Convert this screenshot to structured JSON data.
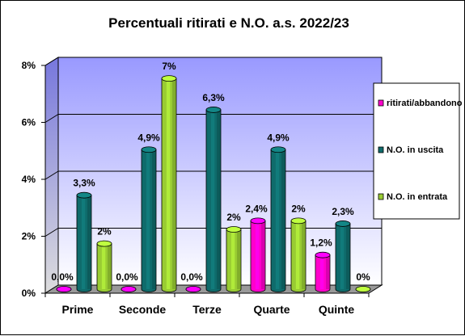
{
  "chart_data": {
    "type": "bar",
    "title": "Percentuali  ritirati e N.O. a.s. 2022/23",
    "xlabel": "",
    "ylabel": "",
    "categories": [
      "Prime",
      "Seconde",
      "Terze",
      "Quarte",
      "Quinte"
    ],
    "series": [
      {
        "name": "ritirati/abbandono",
        "values": [
          0.0,
          0.0,
          0.0,
          2.4,
          1.2
        ],
        "labels": [
          "0,0%",
          "0,0%",
          "0,0%",
          "2,4%",
          "1,2%"
        ],
        "color": "#ff00cc"
      },
      {
        "name": "N.O. in uscita",
        "values": [
          3.3,
          4.9,
          6.3,
          4.9,
          2.3
        ],
        "labels": [
          "3,3%",
          "4,9%",
          "6,3%",
          "4,9%",
          "2,3%"
        ],
        "color": "#0f6b6b"
      },
      {
        "name": "N.O. in entrata",
        "values": [
          1.6,
          7.4,
          2.1,
          2.4,
          0.0
        ],
        "labels": [
          "2%",
          "7%",
          "2%",
          "2%",
          "0%"
        ],
        "color": "#99cc33"
      }
    ],
    "ylim": [
      0,
      8
    ],
    "yticks": [
      0,
      2,
      4,
      6,
      8
    ],
    "ytick_labels": [
      "0%",
      "2%",
      "4%",
      "6%",
      "8%"
    ],
    "grid": true,
    "legend_position": "right",
    "colors": {
      "plot_background_top": "#9999ff",
      "plot_background_bottom": "#ffffff",
      "floor": "#999999"
    }
  }
}
